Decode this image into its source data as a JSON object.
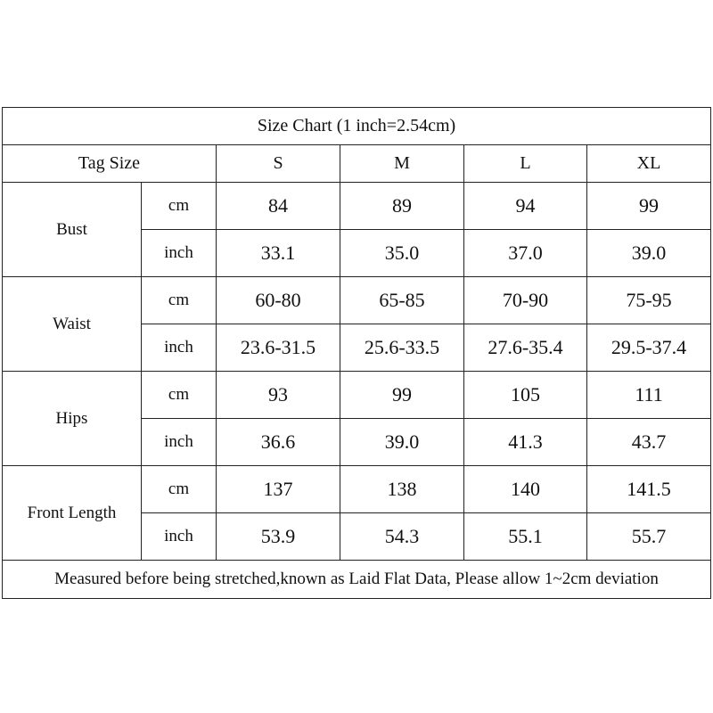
{
  "title": "Size Chart (1 inch=2.54cm)",
  "header": {
    "label": "Tag Size",
    "sizes": [
      "S",
      "M",
      "L",
      "XL"
    ]
  },
  "groups": [
    {
      "name": "Bust",
      "rows": [
        {
          "unit": "cm",
          "values": [
            "84",
            "89",
            "94",
            "99"
          ]
        },
        {
          "unit": "inch",
          "values": [
            "33.1",
            "35.0",
            "37.0",
            "39.0"
          ]
        }
      ]
    },
    {
      "name": "Waist",
      "rows": [
        {
          "unit": "cm",
          "values": [
            "60-80",
            "65-85",
            "70-90",
            "75-95"
          ]
        },
        {
          "unit": "inch",
          "values": [
            "23.6-31.5",
            "25.6-33.5",
            "27.6-35.4",
            "29.5-37.4"
          ]
        }
      ]
    },
    {
      "name": "Hips",
      "rows": [
        {
          "unit": "cm",
          "values": [
            "93",
            "99",
            "105",
            "111"
          ]
        },
        {
          "unit": "inch",
          "values": [
            "36.6",
            "39.0",
            "41.3",
            "43.7"
          ]
        }
      ]
    },
    {
      "name": "Front Length",
      "rows": [
        {
          "unit": "cm",
          "values": [
            "137",
            "138",
            "140",
            "141.5"
          ]
        },
        {
          "unit": "inch",
          "values": [
            "53.9",
            "54.3",
            "55.1",
            "55.7"
          ]
        }
      ]
    }
  ],
  "note": "Measured before being stretched,known as Laid Flat Data, Please allow 1~2cm deviation"
}
